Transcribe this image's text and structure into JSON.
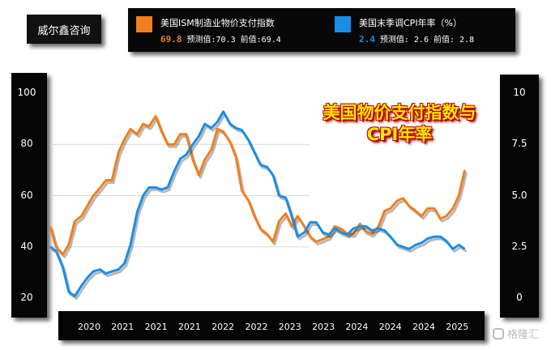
{
  "brand": "威尔鑫咨询",
  "watermark": "格隆汇",
  "legend": [
    {
      "name": "美国ISM制造业物价支付指数",
      "current": "69.8",
      "forecast_label": "预测值",
      "forecast": ":70.3",
      "previous_label": "前值",
      "previous": ":69.4",
      "color": "#f07f1e"
    },
    {
      "name": "美国末季调CPI年率（%）",
      "current": "2.4",
      "forecast_label": "预测值",
      "forecast": ": 2.6",
      "previous_label": "前值",
      "previous": ": 2.8",
      "color": "#1a8ee6"
    }
  ],
  "chart_data": {
    "type": "line",
    "title": "美国物价支付指数与CPI年率",
    "x_tick_labels": [
      "2020",
      "2021",
      "2021",
      "2021",
      "2022",
      "2022",
      "2023",
      "2023",
      "2024",
      "2024",
      "2024",
      "2025"
    ],
    "y_left": {
      "ticks": [
        "100",
        "80",
        "60",
        "40",
        "20"
      ],
      "range": [
        20,
        100
      ]
    },
    "y_right": {
      "ticks": [
        "10",
        "7.5",
        "5.0",
        "2.5",
        "0"
      ],
      "range": [
        0,
        10
      ]
    },
    "x_range": [
      2019.75,
      2025.4
    ],
    "grid": true,
    "series": [
      {
        "name": "美国ISM制造业物价支付指数",
        "axis": "left",
        "color": "#f07f1e",
        "x": [
          2019.75,
          2019.83,
          2019.92,
          2020.0,
          2020.08,
          2020.17,
          2020.25,
          2020.33,
          2020.42,
          2020.5,
          2020.58,
          2020.67,
          2020.75,
          2020.83,
          2020.92,
          2021.0,
          2021.08,
          2021.17,
          2021.25,
          2021.33,
          2021.42,
          2021.5,
          2021.58,
          2021.67,
          2021.75,
          2021.83,
          2021.92,
          2022.0,
          2022.08,
          2022.17,
          2022.25,
          2022.33,
          2022.42,
          2022.5,
          2022.58,
          2022.67,
          2022.75,
          2022.83,
          2022.92,
          2023.0,
          2023.08,
          2023.17,
          2023.25,
          2023.33,
          2023.42,
          2023.5,
          2023.58,
          2023.67,
          2023.75,
          2023.83,
          2023.92,
          2024.0,
          2024.08,
          2024.17,
          2024.25,
          2024.33,
          2024.42,
          2024.5,
          2024.58,
          2024.67,
          2024.75,
          2024.83,
          2024.92,
          2025.0,
          2025.08,
          2025.17,
          2025.25,
          2025.33
        ],
        "values": [
          48,
          40,
          37,
          41,
          50,
          52,
          56,
          60,
          63,
          66,
          66,
          77,
          82,
          86,
          84,
          88,
          87,
          91,
          85,
          80,
          80,
          84,
          84,
          74,
          68,
          74,
          78,
          86,
          85,
          81,
          75,
          62,
          58,
          52,
          47,
          45,
          42,
          50,
          53,
          48,
          52,
          48,
          44,
          42,
          43,
          44,
          48,
          47,
          45,
          45,
          49,
          46,
          45,
          48,
          54,
          55,
          58,
          59,
          56,
          54,
          52,
          55,
          55,
          51,
          52,
          55,
          60,
          70
        ]
      },
      {
        "name": "美国末季调CPI年率（%）",
        "axis": "right",
        "color": "#1a8ee6",
        "x": [
          2019.75,
          2019.83,
          2019.92,
          2020.0,
          2020.08,
          2020.17,
          2020.25,
          2020.33,
          2020.42,
          2020.5,
          2020.58,
          2020.67,
          2020.75,
          2020.83,
          2020.92,
          2021.0,
          2021.08,
          2021.17,
          2021.25,
          2021.33,
          2021.42,
          2021.5,
          2021.58,
          2021.67,
          2021.75,
          2021.83,
          2021.92,
          2022.0,
          2022.08,
          2022.17,
          2022.25,
          2022.33,
          2022.42,
          2022.5,
          2022.58,
          2022.67,
          2022.75,
          2022.83,
          2022.92,
          2023.0,
          2023.08,
          2023.17,
          2023.25,
          2023.33,
          2023.42,
          2023.5,
          2023.58,
          2023.67,
          2023.75,
          2023.83,
          2023.92,
          2024.0,
          2024.08,
          2024.17,
          2024.25,
          2024.33,
          2024.42,
          2024.5,
          2024.58,
          2024.67,
          2024.75,
          2024.83,
          2024.92,
          2025.0,
          2025.08,
          2025.17,
          2025.25,
          2025.33
        ],
        "values": [
          2.5,
          2.3,
          1.5,
          0.3,
          0.1,
          0.6,
          1.0,
          1.3,
          1.4,
          1.2,
          1.3,
          1.4,
          1.7,
          2.6,
          4.2,
          5.0,
          5.4,
          5.4,
          5.3,
          5.4,
          6.2,
          6.8,
          7.0,
          7.5,
          7.9,
          8.5,
          8.3,
          8.6,
          9.1,
          8.5,
          8.3,
          8.2,
          7.7,
          7.1,
          6.5,
          6.4,
          6.0,
          5.0,
          4.9,
          4.0,
          3.0,
          3.2,
          3.7,
          3.7,
          3.2,
          3.1,
          3.4,
          3.2,
          3.1,
          3.4,
          3.5,
          3.5,
          3.3,
          3.4,
          3.3,
          3.0,
          2.6,
          2.5,
          2.4,
          2.6,
          2.7,
          2.9,
          3.0,
          3.0,
          2.8,
          2.4,
          2.6,
          2.4
        ]
      }
    ]
  }
}
